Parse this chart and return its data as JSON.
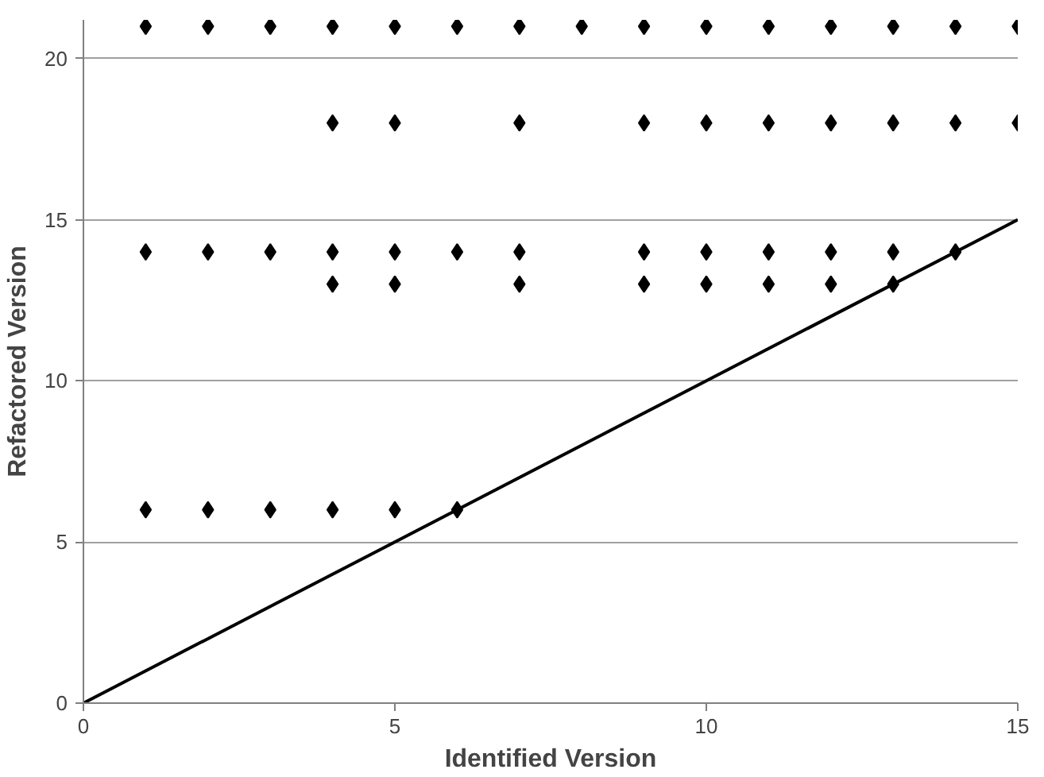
{
  "chart_data": {
    "type": "scatter",
    "xlabel": "Identified Version",
    "ylabel": "Refactored Version",
    "xlim": [
      0,
      15
    ],
    "ylim": [
      0,
      21.2
    ],
    "xticks": [
      0,
      5,
      10,
      15
    ],
    "yticks": [
      0,
      5,
      10,
      15,
      20
    ],
    "grid": "y",
    "marker": "diamond",
    "series": [
      {
        "color": "#000000",
        "x": [
          1,
          2,
          3,
          4,
          5,
          6,
          7,
          8,
          9,
          10,
          11,
          12,
          13,
          14,
          15,
          4,
          5,
          7,
          9,
          10,
          11,
          12,
          13,
          14,
          15,
          1,
          2,
          3,
          4,
          5,
          6,
          7,
          9,
          10,
          11,
          12,
          13,
          14,
          4,
          5,
          7,
          9,
          10,
          11,
          12,
          13,
          1,
          2,
          3,
          4,
          5,
          6
        ],
        "values": [
          21,
          21,
          21,
          21,
          21,
          21,
          21,
          21,
          21,
          21,
          21,
          21,
          21,
          21,
          21,
          18,
          18,
          18,
          18,
          18,
          18,
          18,
          18,
          18,
          18,
          14,
          14,
          14,
          14,
          14,
          14,
          14,
          14,
          14,
          14,
          14,
          14,
          14,
          13,
          13,
          13,
          13,
          13,
          13,
          13,
          13,
          6,
          6,
          6,
          6,
          6,
          6
        ]
      },
      {
        "type": "line",
        "color": "#000000",
        "marker": "none",
        "x": [
          0,
          15
        ],
        "values": [
          0,
          15
        ]
      }
    ]
  }
}
